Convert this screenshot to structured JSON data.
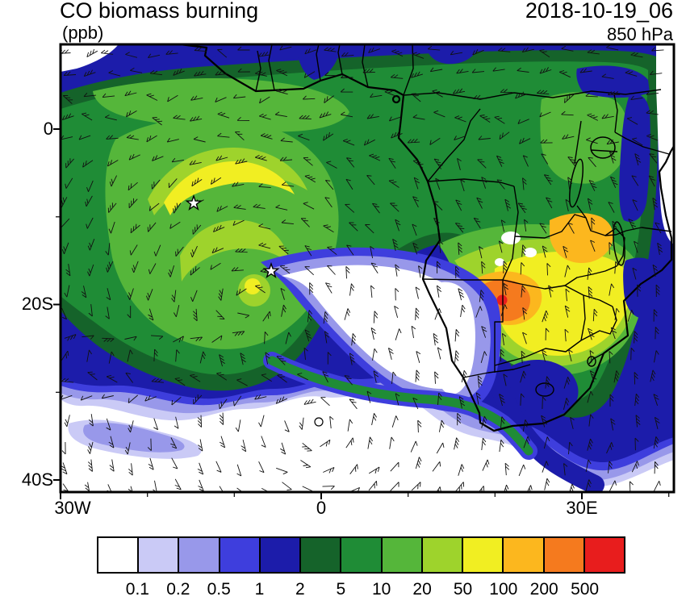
{
  "header": {
    "title": "CO biomass burning",
    "units": "(ppb)",
    "datetime": "2018-10-19_06",
    "level": "850 hPa"
  },
  "axes": {
    "y_ticks": [
      "0",
      "20S",
      "40S"
    ],
    "x_ticks": [
      "30W",
      "0",
      "30E"
    ]
  },
  "colorbar": {
    "levels": [
      "0.1",
      "0.2",
      "0.5",
      "1",
      "2",
      "5",
      "10",
      "20",
      "50",
      "100",
      "200",
      "500"
    ],
    "colors": [
      "#ffffff",
      "#cacaf6",
      "#9898ea",
      "#3e3edd",
      "#1c1caa",
      "#15632a",
      "#1f8c36",
      "#55b63a",
      "#9ed32c",
      "#f1ee22",
      "#fcb71e",
      "#f57a1e",
      "#e81d1d"
    ]
  },
  "chart_data": {
    "type": "heatmap",
    "title": "CO biomass burning",
    "subtitle": "(ppb)",
    "valid_time": "2018-10-19_06",
    "pressure_level": "850 hPa",
    "x_axis": {
      "tick_labels": [
        "30W",
        "0",
        "30E"
      ],
      "approx_range_deg_lon": [
        -30,
        40
      ]
    },
    "y_axis": {
      "tick_labels": [
        "0",
        "20S",
        "40S"
      ],
      "approx_range_deg_lat": [
        10,
        -42
      ]
    },
    "contour_levels_ppb": [
      0.1,
      0.2,
      0.5,
      1,
      2,
      5,
      10,
      20,
      50,
      100,
      200,
      500
    ],
    "palette": [
      "#ffffff",
      "#cacaf6",
      "#9898ea",
      "#3e3edd",
      "#1c1caa",
      "#15632a",
      "#1f8c36",
      "#55b63a",
      "#9ed32c",
      "#f1ee22",
      "#fcb71e",
      "#f57a1e",
      "#e81d1d"
    ],
    "legend_position": "bottom horizontal",
    "overlays": [
      "wind barbs everywhere",
      "coastlines of Africa",
      "country borders and lakes (Victoria, Tanganyika, Malawi)",
      "star marker near 9S 15W",
      "star marker near 16S 6W",
      "calm circle symbol near 33S 0E"
    ],
    "notable_features": [
      {
        "feature": "CO maximum > 500 ppb (red core in orange patch)",
        "location": "about 17S, 19E near Angola/Namibia border"
      },
      {
        "feature": "orange 100-200 ppb patch",
        "location": "eastern Zambia about 12S, 28E"
      },
      {
        "feature": "broad 50-100 ppb yellow plume",
        "location": "Angola / Zambia / Zimbabwe, 10S-20S"
      },
      {
        "feature": "smoke gyre 5-100 ppb over ocean",
        "location": "South Atlantic, 30W-10E, 2S-25S"
      },
      {
        "feature": "clean slot < 0.1 ppb",
        "location": "between gyre and coast, 12S-22S, 8W-10E"
      },
      {
        "feature": "clean air < 0.1 ppb",
        "location": "Southern Ocean south of about 28S"
      },
      {
        "feature": "green 2-20 ppb band",
        "location": "equatorial Africa and tropical Atlantic, 5N-5S"
      }
    ]
  }
}
